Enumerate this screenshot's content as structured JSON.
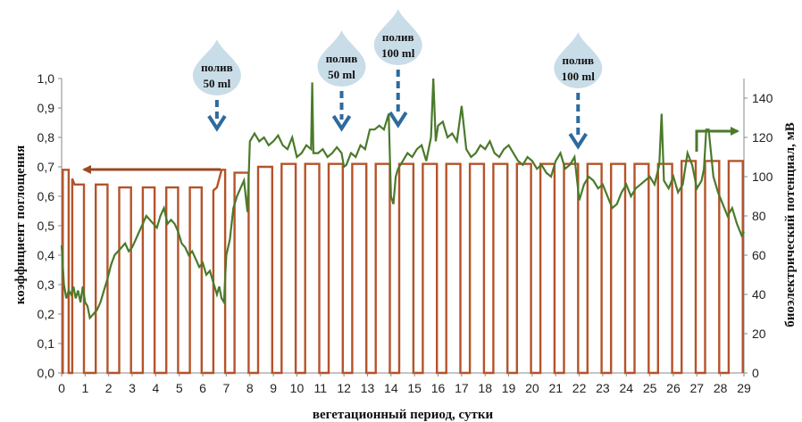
{
  "chart_data": {
    "type": "line",
    "xlabel": "вегетационный период, сутки",
    "ylabel_left": "коэффициент поглощения",
    "ylabel_right": "биоэлектрический потенциал, мВ",
    "x_ticks": [
      "0",
      "1",
      "2",
      "3",
      "4",
      "5",
      "6",
      "7",
      "8",
      "9",
      "10",
      "11",
      "12",
      "13",
      "14",
      "15",
      "16",
      "17",
      "18",
      "19",
      "20",
      "21",
      "22",
      "23",
      "24",
      "25",
      "26",
      "27",
      "28",
      "29"
    ],
    "y_left_ticks": [
      "0,0",
      "0,1",
      "0,2",
      "0,3",
      "0,4",
      "0,5",
      "0,6",
      "0,7",
      "0,8",
      "0,9",
      "1,0"
    ],
    "y_right_ticks": [
      "0",
      "20",
      "40",
      "60",
      "80",
      "100",
      "120",
      "140"
    ],
    "xlim": [
      0,
      29
    ],
    "ylim_left": [
      0,
      1.0
    ],
    "ylim_right": [
      0,
      150
    ],
    "grid": false,
    "series": [
      {
        "axis": "left",
        "color": "#b5532a",
        "style": "square pulses, one dark pulse per day",
        "x": [
          0.0,
          0.05,
          0.05,
          0.3,
          0.3,
          0.45,
          0.45,
          0.55,
          0.65,
          0.95,
          0.95,
          1.45,
          1.45,
          1.95,
          1.95,
          2.45,
          2.45,
          2.95,
          2.95,
          3.45,
          3.45,
          3.95,
          3.95,
          4.45,
          4.45,
          4.95,
          4.95,
          5.45,
          5.45,
          5.95,
          5.95,
          6.45,
          6.45,
          6.6,
          6.8,
          6.95,
          6.95,
          7.35,
          7.35,
          7.95,
          7.95,
          8.35,
          8.35,
          8.95,
          8.95,
          9.35,
          9.35,
          9.95,
          9.95,
          10.35,
          10.35,
          10.95,
          10.95,
          11.35,
          11.35,
          11.95,
          11.95,
          12.35,
          12.35,
          12.95,
          12.95,
          13.35,
          13.35,
          13.95,
          13.95,
          14.35,
          14.35,
          14.95,
          14.95,
          15.35,
          15.35,
          15.95,
          15.95,
          16.35,
          16.35,
          16.95,
          16.95,
          17.35,
          17.35,
          17.95,
          17.95,
          18.35,
          18.35,
          18.95,
          18.95,
          19.35,
          19.35,
          19.95,
          19.95,
          20.35,
          20.35,
          20.95,
          20.95,
          21.35,
          21.35,
          21.95,
          21.95,
          22.35,
          22.35,
          22.95,
          22.95,
          23.35,
          23.35,
          23.95,
          23.95,
          24.35,
          24.35,
          24.95,
          24.95,
          25.35,
          25.35,
          25.95,
          25.95,
          26.35,
          26.35,
          26.95,
          26.95,
          27.35,
          27.35,
          27.95,
          27.95,
          28.35,
          28.35,
          28.95,
          28.95
        ],
        "values": [
          0.0,
          0.0,
          0.69,
          0.69,
          0.0,
          0.0,
          0.66,
          0.64,
          0.64,
          0.64,
          0.0,
          0.0,
          0.64,
          0.64,
          0.0,
          0.0,
          0.63,
          0.63,
          0.0,
          0.0,
          0.63,
          0.63,
          0.0,
          0.0,
          0.63,
          0.63,
          0.0,
          0.0,
          0.63,
          0.63,
          0.0,
          0.0,
          0.62,
          0.63,
          0.69,
          0.69,
          0.0,
          0.0,
          0.68,
          0.68,
          0.0,
          0.0,
          0.7,
          0.7,
          0.0,
          0.0,
          0.71,
          0.71,
          0.0,
          0.0,
          0.71,
          0.71,
          0.0,
          0.0,
          0.71,
          0.71,
          0.0,
          0.0,
          0.71,
          0.71,
          0.0,
          0.0,
          0.71,
          0.71,
          0.0,
          0.0,
          0.71,
          0.71,
          0.0,
          0.0,
          0.71,
          0.71,
          0.0,
          0.0,
          0.71,
          0.71,
          0.0,
          0.0,
          0.71,
          0.71,
          0.0,
          0.0,
          0.71,
          0.71,
          0.0,
          0.0,
          0.71,
          0.71,
          0.0,
          0.0,
          0.71,
          0.71,
          0.0,
          0.0,
          0.71,
          0.71,
          0.0,
          0.0,
          0.71,
          0.71,
          0.0,
          0.0,
          0.71,
          0.71,
          0.0,
          0.0,
          0.71,
          0.71,
          0.0,
          0.0,
          0.71,
          0.71,
          0.0,
          0.0,
          0.72,
          0.72,
          0.0,
          0.0,
          0.72,
          0.72,
          0.0,
          0.0,
          0.72,
          0.72,
          0.0
        ]
      },
      {
        "axis": "right",
        "color": "#4a7a2a",
        "style": "noisy stepped line",
        "x": [
          0.0,
          0.1,
          0.2,
          0.3,
          0.4,
          0.5,
          0.6,
          0.7,
          0.8,
          0.9,
          1.0,
          1.1,
          1.2,
          1.35,
          1.5,
          1.65,
          1.8,
          1.95,
          2.1,
          2.25,
          2.4,
          2.55,
          2.7,
          2.85,
          3.0,
          3.15,
          3.3,
          3.45,
          3.6,
          3.75,
          3.9,
          4.05,
          4.2,
          4.35,
          4.5,
          4.65,
          4.8,
          4.95,
          5.1,
          5.25,
          5.4,
          5.55,
          5.7,
          5.85,
          6.0,
          6.15,
          6.3,
          6.45,
          6.6,
          6.7,
          6.8,
          6.9,
          7.0,
          7.15,
          7.3,
          7.45,
          7.6,
          7.75,
          7.9,
          8.0,
          8.2,
          8.4,
          8.6,
          8.8,
          9.0,
          9.2,
          9.4,
          9.6,
          9.8,
          10.0,
          10.2,
          10.4,
          10.6,
          10.65,
          10.7,
          10.9,
          11.1,
          11.3,
          11.5,
          11.7,
          11.9,
          12.0,
          12.1,
          12.3,
          12.5,
          12.7,
          12.9,
          13.1,
          13.3,
          13.5,
          13.7,
          13.9,
          14.0,
          14.1,
          14.2,
          14.3,
          14.5,
          14.7,
          14.9,
          15.1,
          15.3,
          15.5,
          15.7,
          15.8,
          15.9,
          16.0,
          16.2,
          16.4,
          16.6,
          16.8,
          17.0,
          17.2,
          17.4,
          17.6,
          17.8,
          18.0,
          18.2,
          18.4,
          18.6,
          18.8,
          19.0,
          19.2,
          19.4,
          19.6,
          19.8,
          20.0,
          20.2,
          20.4,
          20.6,
          20.8,
          21.0,
          21.2,
          21.4,
          21.6,
          21.8,
          22.0,
          22.2,
          22.4,
          22.6,
          22.8,
          23.0,
          23.2,
          23.4,
          23.6,
          23.8,
          24.0,
          24.2,
          24.4,
          24.6,
          24.8,
          25.0,
          25.2,
          25.4,
          25.5,
          25.6,
          25.8,
          26.0,
          26.2,
          26.4,
          26.6,
          26.8,
          27.0,
          27.2,
          27.3,
          27.4,
          27.5,
          27.7,
          27.9,
          28.1,
          28.3,
          28.5,
          28.7,
          28.9,
          29.0
        ],
        "values": [
          65,
          45,
          38,
          42,
          40,
          44,
          38,
          42,
          36,
          44,
          36,
          34,
          28,
          30,
          32,
          36,
          42,
          48,
          55,
          60,
          62,
          64,
          66,
          62,
          64,
          68,
          72,
          76,
          80,
          78,
          76,
          74,
          80,
          84,
          76,
          78,
          76,
          72,
          66,
          64,
          60,
          62,
          58,
          54,
          56,
          50,
          52,
          46,
          40,
          44,
          38,
          36,
          60,
          68,
          84,
          90,
          94,
          98,
          82,
          118,
          122,
          118,
          120,
          116,
          118,
          121,
          116,
          114,
          120,
          110,
          112,
          116,
          114,
          148,
          112,
          112,
          114,
          110,
          112,
          115,
          112,
          105,
          106,
          112,
          110,
          116,
          114,
          124,
          124,
          126,
          124,
          132,
          90,
          86,
          100,
          104,
          108,
          112,
          110,
          114,
          116,
          108,
          120,
          150,
          118,
          126,
          128,
          120,
          122,
          118,
          136,
          114,
          110,
          112,
          116,
          114,
          118,
          112,
          110,
          114,
          116,
          112,
          108,
          106,
          110,
          108,
          104,
          106,
          102,
          100,
          108,
          112,
          104,
          106,
          110,
          88,
          96,
          100,
          98,
          94,
          96,
          90,
          84,
          86,
          92,
          96,
          90,
          94,
          96,
          98,
          100,
          96,
          106,
          132,
          98,
          94,
          100,
          92,
          96,
          112,
          106,
          94,
          98,
          104,
          124,
          124,
          100,
          92,
          86,
          80,
          84,
          76,
          70,
          72
        ]
      }
    ],
    "annotations": [
      {
        "kind": "drop",
        "lines": [
          "полив",
          "50 ml"
        ],
        "x": 6.6
      },
      {
        "kind": "drop",
        "lines": [
          "полив",
          "50 ml"
        ],
        "x": 11.9
      },
      {
        "kind": "drop",
        "lines": [
          "полив",
          "100 ml"
        ],
        "x": 14.3
      },
      {
        "kind": "drop",
        "lines": [
          "полив",
          "100 ml"
        ],
        "x": 21.95
      }
    ],
    "colors": {
      "pulse": "#b5532a",
      "bep": "#4a7a2a",
      "drop": "#c9dde8",
      "dashed_arrow": "#2e6a9e",
      "axis": "#888888"
    }
  }
}
